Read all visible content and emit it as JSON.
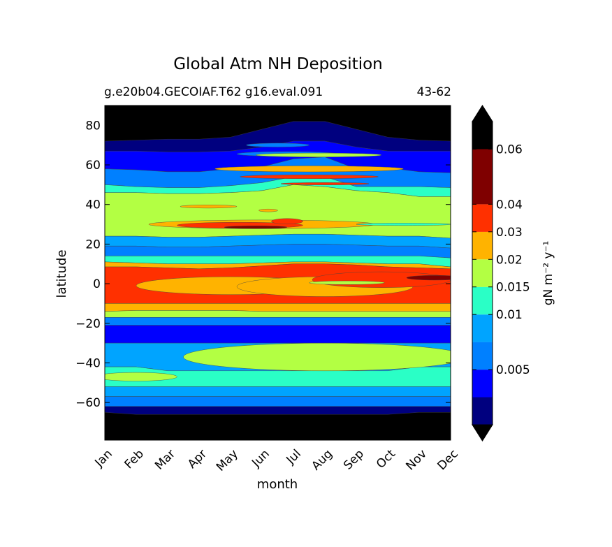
{
  "chart_data": {
    "type": "heatmap",
    "title": "Global Atm NH Deposition",
    "subtitle_left": "g.e20b04.GECOIAF.T62 g16.eval.091",
    "subtitle_right": "43-62",
    "xlabel": "month",
    "ylabel": "latitude",
    "x_categories": [
      "Jan",
      "Feb",
      "Mar",
      "Apr",
      "May",
      "Jun",
      "Jul",
      "Aug",
      "Sep",
      "Oct",
      "Nov",
      "Dec"
    ],
    "y_ticks": [
      80,
      60,
      40,
      20,
      0,
      -20,
      -40,
      -60
    ],
    "ylim": [
      -79,
      90
    ],
    "colorbar": {
      "label": "gN m⁻² y⁻¹",
      "levels": [
        0,
        0.0025,
        0.005,
        0.0075,
        0.01,
        0.015,
        0.02,
        0.03,
        0.04,
        0.05,
        0.06,
        0.07
      ],
      "tick_values": [
        0.005,
        0.01,
        0.015,
        0.02,
        0.03,
        0.04,
        0.06
      ],
      "tick_labels": [
        "0.005",
        "0.01",
        "0.015",
        "0.02",
        "0.03",
        "0.04",
        "0.06"
      ],
      "extend": "both",
      "colors": [
        "#00007f",
        "#0000ff",
        "#0080ff",
        "#00a4ff",
        "#2affc6",
        "#b3ff43",
        "#ffb300",
        "#ff3000",
        "#7f0000",
        "#7f0000"
      ],
      "under_color": "#000000",
      "over_color": "#000000"
    },
    "nodata_color": "#000000"
  }
}
